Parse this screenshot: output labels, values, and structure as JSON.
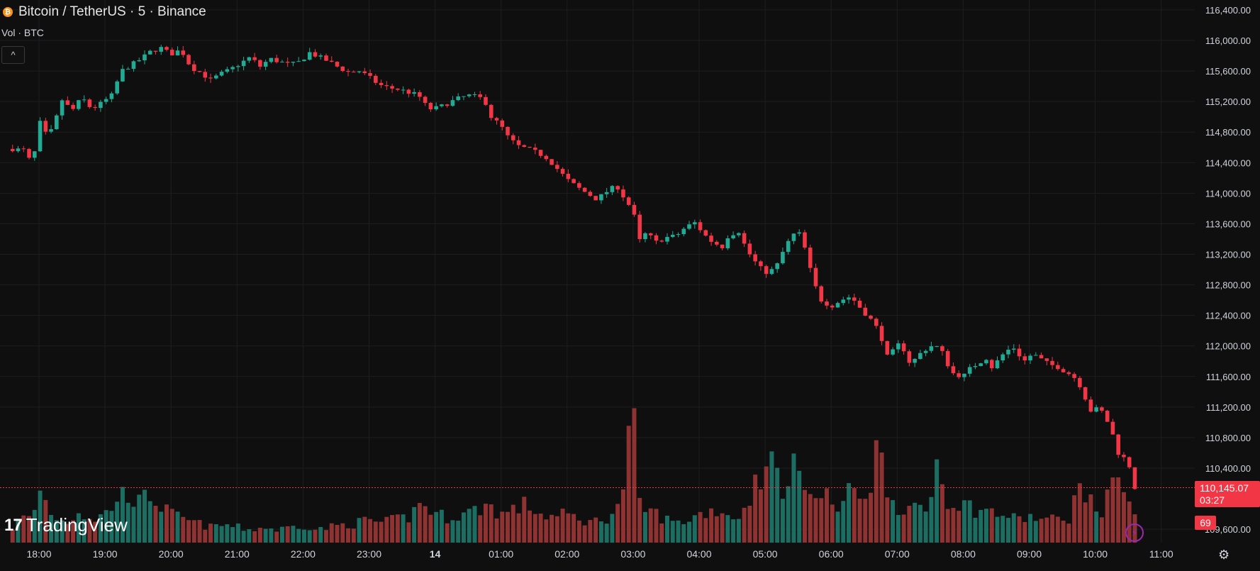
{
  "header": {
    "symbol_title": "Bitcoin / TetherUS · 5 · Binance",
    "volume_label": "Vol · BTC",
    "collapse_label": "^"
  },
  "branding": {
    "logo_mark": "17",
    "logo_text": "TradingView"
  },
  "last_price": {
    "value": "110,145.07",
    "countdown": "03:27"
  },
  "last_volume": "69",
  "icons": {
    "coin": "bitcoin-icon",
    "bolt": "lightning-icon",
    "settings": "gear-icon",
    "collapse": "chevron-up-icon"
  },
  "colors": {
    "up": "#22ab94",
    "down": "#f23645",
    "volume_up": "#1c6e63",
    "volume_down": "#8e3232",
    "background": "#0f0f0f",
    "grid": "#1e1e1e"
  },
  "chart_data": {
    "type": "candlestick",
    "interval": "5",
    "y_axis_labels": [
      "116,400.00",
      "116,000.00",
      "115,600.00",
      "115,200.00",
      "114,800.00",
      "114,400.00",
      "114,000.00",
      "113,600.00",
      "113,200.00",
      "112,800.00",
      "112,400.00",
      "112,000.00",
      "111,600.00",
      "111,200.00",
      "110,800.00",
      "110,400.00",
      "109,600.00"
    ],
    "y_axis_values": [
      116400,
      116000,
      115600,
      115200,
      114800,
      114400,
      114000,
      113600,
      113200,
      112800,
      112400,
      112000,
      111600,
      111200,
      110800,
      110400,
      109600
    ],
    "x_axis_labels": [
      "18:00",
      "19:00",
      "20:00",
      "21:00",
      "22:00",
      "23:00",
      "14",
      "01:00",
      "02:00",
      "03:00",
      "04:00",
      "05:00",
      "06:00",
      "07:00",
      "08:00",
      "09:00",
      "10:00",
      "11:00"
    ],
    "ylim": [
      109550,
      116450
    ],
    "last_price": 110145.07,
    "close_path": [
      [
        17.6,
        114580
      ],
      [
        17.8,
        114560
      ],
      [
        17.9,
        114330
      ],
      [
        18.0,
        114950
      ],
      [
        18.1,
        114780
      ],
      [
        18.2,
        114820
      ],
      [
        18.35,
        115220
      ],
      [
        18.5,
        115080
      ],
      [
        18.65,
        115250
      ],
      [
        18.8,
        115100
      ],
      [
        18.95,
        115180
      ],
      [
        19.1,
        115280
      ],
      [
        19.25,
        115600
      ],
      [
        19.4,
        115680
      ],
      [
        19.55,
        115760
      ],
      [
        19.7,
        115860
      ],
      [
        19.85,
        115900
      ],
      [
        20.0,
        115820
      ],
      [
        20.15,
        115880
      ],
      [
        20.3,
        115650
      ],
      [
        20.45,
        115580
      ],
      [
        20.6,
        115480
      ],
      [
        20.75,
        115560
      ],
      [
        20.9,
        115620
      ],
      [
        21.05,
        115700
      ],
      [
        21.2,
        115780
      ],
      [
        21.35,
        115660
      ],
      [
        21.5,
        115760
      ],
      [
        21.65,
        115720
      ],
      [
        21.8,
        115680
      ],
      [
        21.95,
        115720
      ],
      [
        22.1,
        115840
      ],
      [
        22.25,
        115780
      ],
      [
        22.4,
        115720
      ],
      [
        22.55,
        115640
      ],
      [
        22.7,
        115580
      ],
      [
        22.85,
        115600
      ],
      [
        23.0,
        115520
      ],
      [
        23.15,
        115420
      ],
      [
        23.3,
        115380
      ],
      [
        23.45,
        115360
      ],
      [
        23.6,
        115320
      ],
      [
        23.75,
        115280
      ],
      [
        23.9,
        115100
      ],
      [
        24.05,
        115120
      ],
      [
        24.2,
        115180
      ],
      [
        24.35,
        115240
      ],
      [
        24.5,
        115280
      ],
      [
        24.65,
        115260
      ],
      [
        24.75,
        115220
      ],
      [
        24.85,
        115000
      ],
      [
        25.0,
        114880
      ],
      [
        25.1,
        114740
      ],
      [
        25.25,
        114620
      ],
      [
        25.4,
        114580
      ],
      [
        25.55,
        114530
      ],
      [
        25.7,
        114460
      ],
      [
        25.85,
        114320
      ],
      [
        26.0,
        114180
      ],
      [
        26.15,
        114080
      ],
      [
        26.3,
        114000
      ],
      [
        26.45,
        113920
      ],
      [
        26.6,
        114020
      ],
      [
        26.75,
        114100
      ],
      [
        26.85,
        113960
      ],
      [
        27.0,
        113760
      ],
      [
        27.1,
        113380
      ],
      [
        27.2,
        113480
      ],
      [
        27.35,
        113360
      ],
      [
        27.5,
        113420
      ],
      [
        27.65,
        113440
      ],
      [
        27.8,
        113560
      ],
      [
        27.95,
        113620
      ],
      [
        28.05,
        113480
      ],
      [
        28.2,
        113360
      ],
      [
        28.35,
        113300
      ],
      [
        28.45,
        113460
      ],
      [
        28.55,
        113480
      ],
      [
        28.6,
        113500
      ],
      [
        28.7,
        113300
      ],
      [
        28.8,
        113150
      ],
      [
        28.95,
        113000
      ],
      [
        29.05,
        112950
      ],
      [
        29.2,
        113080
      ],
      [
        29.3,
        113300
      ],
      [
        29.45,
        113480
      ],
      [
        29.55,
        113460
      ],
      [
        29.65,
        113100
      ],
      [
        29.75,
        112800
      ],
      [
        29.85,
        112600
      ],
      [
        30.0,
        112520
      ],
      [
        30.15,
        112600
      ],
      [
        30.3,
        112650
      ],
      [
        30.4,
        112540
      ],
      [
        30.5,
        112440
      ],
      [
        30.65,
        112300
      ],
      [
        30.75,
        112140
      ],
      [
        30.85,
        111860
      ],
      [
        30.95,
        111940
      ],
      [
        31.05,
        112050
      ],
      [
        31.2,
        111760
      ],
      [
        31.35,
        111900
      ],
      [
        31.5,
        112000
      ],
      [
        31.65,
        111980
      ],
      [
        31.75,
        111780
      ],
      [
        31.85,
        111640
      ],
      [
        32.0,
        111600
      ],
      [
        32.1,
        111700
      ],
      [
        32.2,
        111760
      ],
      [
        32.35,
        111840
      ],
      [
        32.45,
        111700
      ],
      [
        32.55,
        111850
      ],
      [
        32.7,
        111960
      ],
      [
        32.8,
        111980
      ],
      [
        32.9,
        111780
      ],
      [
        33.05,
        111900
      ],
      [
        33.15,
        111840
      ],
      [
        33.3,
        111760
      ],
      [
        33.45,
        111720
      ],
      [
        33.55,
        111660
      ],
      [
        33.65,
        111620
      ],
      [
        33.75,
        111520
      ],
      [
        33.85,
        111320
      ],
      [
        33.95,
        111120
      ],
      [
        34.05,
        111200
      ],
      [
        34.15,
        111080
      ],
      [
        34.25,
        110880
      ],
      [
        34.35,
        110600
      ],
      [
        34.45,
        110520
      ],
      [
        34.55,
        110380
      ],
      [
        34.6,
        110145
      ]
    ],
    "volume_path": [
      [
        17.6,
        0.12
      ],
      [
        17.75,
        0.2
      ],
      [
        17.9,
        0.18
      ],
      [
        18.0,
        0.42
      ],
      [
        18.2,
        0.22
      ],
      [
        18.4,
        0.15
      ],
      [
        18.6,
        0.25
      ],
      [
        18.8,
        0.18
      ],
      [
        19.0,
        0.22
      ],
      [
        19.2,
        0.35
      ],
      [
        19.35,
        0.4
      ],
      [
        19.5,
        0.3
      ],
      [
        19.7,
        0.38
      ],
      [
        19.85,
        0.28
      ],
      [
        20.0,
        0.22
      ],
      [
        20.2,
        0.18
      ],
      [
        20.4,
        0.15
      ],
      [
        20.6,
        0.12
      ],
      [
        20.8,
        0.14
      ],
      [
        21.0,
        0.12
      ],
      [
        21.2,
        0.1
      ],
      [
        21.4,
        0.12
      ],
      [
        21.6,
        0.1
      ],
      [
        21.8,
        0.12
      ],
      [
        22.0,
        0.14
      ],
      [
        22.2,
        0.1
      ],
      [
        22.4,
        0.12
      ],
      [
        22.6,
        0.14
      ],
      [
        22.8,
        0.15
      ],
      [
        23.0,
        0.18
      ],
      [
        23.2,
        0.15
      ],
      [
        23.4,
        0.18
      ],
      [
        23.6,
        0.2
      ],
      [
        23.8,
        0.32
      ],
      [
        24.0,
        0.22
      ],
      [
        24.2,
        0.2
      ],
      [
        24.4,
        0.22
      ],
      [
        24.6,
        0.25
      ],
      [
        24.8,
        0.3
      ],
      [
        25.0,
        0.22
      ],
      [
        25.2,
        0.26
      ],
      [
        25.4,
        0.3
      ],
      [
        25.6,
        0.22
      ],
      [
        25.8,
        0.2
      ],
      [
        26.0,
        0.22
      ],
      [
        26.2,
        0.18
      ],
      [
        26.4,
        0.16
      ],
      [
        26.6,
        0.2
      ],
      [
        26.8,
        0.28
      ],
      [
        27.0,
        1.0
      ],
      [
        27.1,
        0.28
      ],
      [
        27.3,
        0.24
      ],
      [
        27.5,
        0.18
      ],
      [
        27.7,
        0.15
      ],
      [
        27.9,
        0.2
      ],
      [
        28.1,
        0.24
      ],
      [
        28.3,
        0.26
      ],
      [
        28.5,
        0.2
      ],
      [
        28.7,
        0.24
      ],
      [
        28.9,
        0.6
      ],
      [
        29.0,
        0.45
      ],
      [
        29.1,
        0.7
      ],
      [
        29.2,
        0.5
      ],
      [
        29.35,
        0.4
      ],
      [
        29.5,
        0.68
      ],
      [
        29.6,
        0.55
      ],
      [
        29.75,
        0.32
      ],
      [
        29.9,
        0.38
      ],
      [
        30.1,
        0.26
      ],
      [
        30.3,
        0.4
      ],
      [
        30.5,
        0.38
      ],
      [
        30.6,
        0.48
      ],
      [
        30.7,
        0.75
      ],
      [
        30.8,
        0.55
      ],
      [
        30.95,
        0.3
      ],
      [
        31.1,
        0.28
      ],
      [
        31.3,
        0.24
      ],
      [
        31.5,
        0.26
      ],
      [
        31.6,
        0.78
      ],
      [
        31.7,
        0.38
      ],
      [
        31.85,
        0.32
      ],
      [
        32.0,
        0.3
      ],
      [
        32.2,
        0.26
      ],
      [
        32.4,
        0.24
      ],
      [
        32.6,
        0.22
      ],
      [
        32.8,
        0.18
      ],
      [
        33.0,
        0.2
      ],
      [
        33.2,
        0.18
      ],
      [
        33.4,
        0.18
      ],
      [
        33.6,
        0.2
      ],
      [
        33.8,
        0.48
      ],
      [
        33.95,
        0.28
      ],
      [
        34.1,
        0.22
      ],
      [
        34.2,
        0.54
      ],
      [
        34.3,
        0.35
      ],
      [
        34.4,
        0.58
      ],
      [
        34.5,
        0.38
      ],
      [
        34.6,
        0.22
      ]
    ]
  }
}
